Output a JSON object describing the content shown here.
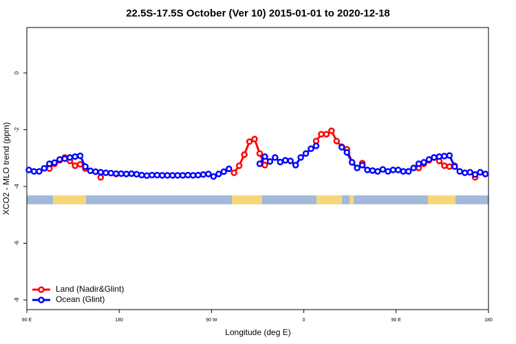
{
  "chart_data": {
    "type": "line",
    "title": "22.5S-17.5S October (Ver 10)   2015-01-01 to 2020-12-18",
    "xlabel": "Longitude (deg E)",
    "ylabel": "XCO2 - MLO trend (ppm)",
    "x": [
      92,
      97,
      102,
      107,
      112,
      117,
      122,
      127,
      132,
      137,
      142,
      147,
      152,
      157,
      162,
      167,
      172,
      177,
      182,
      187,
      192,
      197,
      202,
      207,
      212,
      217,
      222,
      227,
      232,
      237,
      242,
      247,
      252,
      257,
      262,
      267,
      272,
      277,
      282,
      287,
      292,
      297,
      302,
      307,
      312,
      317,
      322,
      327,
      332,
      337,
      342,
      347,
      352,
      357,
      362,
      367,
      372,
      377,
      382,
      387,
      392,
      397,
      402,
      407,
      412,
      417,
      422,
      427,
      432,
      437,
      442,
      447,
      452,
      457,
      462,
      467,
      472,
      477,
      482,
      487,
      492,
      497,
      502,
      507,
      512,
      517,
      522,
      527,
      532,
      537
    ],
    "series": [
      {
        "name": "Land (Nadir&Glint)",
        "color": "#ff0000",
        "values": [
          null,
          null,
          null,
          null,
          -3.37,
          -3.2,
          -3.08,
          -2.98,
          -3.1,
          -3.27,
          -3.22,
          -3.37,
          null,
          null,
          -3.68,
          null,
          null,
          -3.56,
          null,
          null,
          null,
          null,
          null,
          null,
          null,
          null,
          null,
          null,
          null,
          null,
          null,
          null,
          null,
          null,
          null,
          null,
          null,
          null,
          null,
          null,
          -3.52,
          -3.27,
          -2.88,
          -2.42,
          -2.33,
          -2.84,
          -3.25,
          null,
          null,
          null,
          null,
          null,
          null,
          null,
          null,
          null,
          -2.4,
          -2.16,
          -2.16,
          -2.04,
          -2.4,
          -2.6,
          -2.69,
          -3.15,
          null,
          -3.18,
          null,
          null,
          null,
          null,
          null,
          null,
          null,
          null,
          null,
          null,
          -3.35,
          -3.2,
          -3.08,
          -2.98,
          -3.1,
          -3.27,
          -3.3,
          -3.27,
          null,
          null,
          null,
          -3.68,
          null,
          null
        ]
      },
      {
        "name": "Ocean (Glint)",
        "color": "#0000ff",
        "values": [
          -3.42,
          -3.47,
          -3.47,
          -3.36,
          -3.2,
          -3.16,
          -3.05,
          -3.02,
          -2.98,
          -2.95,
          -2.92,
          -3.3,
          -3.45,
          -3.48,
          -3.5,
          -3.52,
          -3.53,
          -3.55,
          -3.55,
          -3.56,
          -3.55,
          -3.57,
          -3.6,
          -3.62,
          -3.6,
          -3.6,
          -3.61,
          -3.61,
          -3.61,
          -3.61,
          -3.61,
          -3.6,
          -3.61,
          -3.6,
          -3.58,
          -3.56,
          -3.65,
          -3.56,
          -3.48,
          -3.38,
          null,
          null,
          null,
          null,
          null,
          -3.2,
          -2.95,
          -3.12,
          -2.98,
          -3.14,
          -3.08,
          -3.1,
          -3.25,
          -2.98,
          -2.84,
          -2.67,
          -2.57,
          null,
          null,
          null,
          null,
          -2.62,
          -2.8,
          -3.15,
          -3.35,
          -3.25,
          -3.42,
          -3.44,
          -3.47,
          -3.4,
          -3.47,
          -3.42,
          -3.42,
          -3.47,
          -3.47,
          -3.35,
          -3.2,
          -3.15,
          -3.05,
          -2.98,
          -2.95,
          -2.93,
          -2.91,
          -3.3,
          -3.47,
          -3.52,
          -3.5,
          -3.58,
          -3.5,
          -3.56
        ]
      }
    ],
    "xlim": [
      90,
      540
    ],
    "xticks": [
      {
        "value": 90,
        "label": "90 E"
      },
      {
        "value": 180,
        "label": "180"
      },
      {
        "value": 270,
        "label": "90 W"
      },
      {
        "value": 360,
        "label": "0"
      },
      {
        "value": 450,
        "label": "90 E"
      },
      {
        "value": 540,
        "label": "180"
      }
    ],
    "ylim": [
      -8.34,
      1.6
    ],
    "yticks": [
      -8,
      -6,
      -4,
      -2,
      0
    ],
    "legend": "bottomleft"
  }
}
